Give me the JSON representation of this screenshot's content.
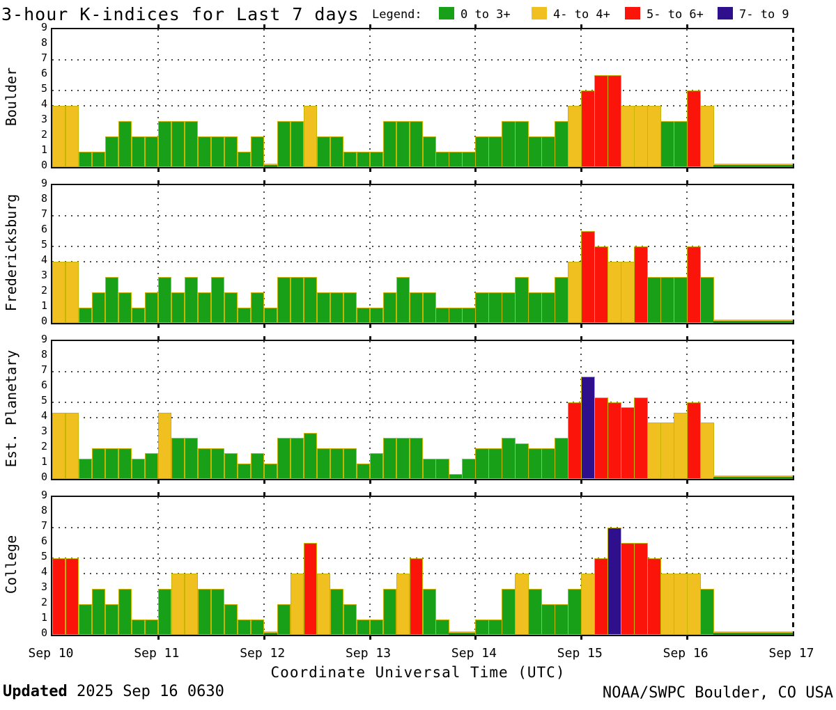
{
  "header": {
    "title": "3-hour K-indices for Last 7 days",
    "legend_label": "Legend:"
  },
  "footer": {
    "updated_label": "Updated",
    "updated_value": " 2025 Sep 16 0630",
    "credit": "NOAA/SWPC Boulder, CO USA"
  },
  "chart_data": {
    "type": "bar",
    "title": "3-hour K-indices for Last 7 days",
    "xlabel": "Coordinate Universal Time (UTC)",
    "x_ticks": [
      "Sep 10",
      "Sep 11",
      "Sep 12",
      "Sep 13",
      "Sep 14",
      "Sep 15",
      "Sep 16",
      "Sep 17"
    ],
    "ylim": [
      0,
      9
    ],
    "y_ticks": [
      0,
      1,
      2,
      3,
      4,
      5,
      6,
      7,
      8,
      9
    ],
    "y_gridlines": [
      4,
      5,
      7
    ],
    "days": 7,
    "bars_per_day": 8,
    "legend_position": "top",
    "grid": "dotted day boundaries and K=4,5,7",
    "color_bands": [
      {
        "label": "0 to 3+",
        "color": "#18a018",
        "min": 0,
        "max": 3.5
      },
      {
        "label": "4- to 4+",
        "color": "#f0c020",
        "min": 3.5,
        "max": 4.5
      },
      {
        "label": "5- to 6+",
        "color": "#fa140a",
        "min": 4.5,
        "max": 6.5
      },
      {
        "label": "7- to 9",
        "color": "#2e108c",
        "min": 6.5,
        "max": 9
      }
    ],
    "panels": [
      {
        "station": "Boulder",
        "values": [
          4,
          4,
          1,
          1,
          2,
          3,
          2,
          2,
          3,
          3,
          3,
          2,
          2,
          2,
          1,
          2,
          0,
          3,
          3,
          4,
          2,
          2,
          1,
          1,
          1,
          3,
          3,
          3,
          2,
          1,
          1,
          1,
          2,
          2,
          3,
          3,
          2,
          2,
          3,
          4,
          5,
          6,
          6,
          4,
          4,
          4,
          3,
          3,
          5,
          4,
          0,
          0,
          0,
          0,
          0,
          0
        ]
      },
      {
        "station": "Fredericksburg",
        "values": [
          4,
          4,
          1,
          2,
          3,
          2,
          1,
          2,
          3,
          2,
          3,
          2,
          3,
          2,
          1,
          2,
          1,
          3,
          3,
          3,
          2,
          2,
          2,
          1,
          1,
          2,
          3,
          2,
          2,
          1,
          1,
          1,
          2,
          2,
          2,
          3,
          2,
          2,
          3,
          4,
          6,
          5,
          4,
          4,
          5,
          3,
          3,
          3,
          5,
          3,
          0,
          0,
          0,
          0,
          0,
          0
        ]
      },
      {
        "station": "Est. Planetary",
        "values": [
          4.33,
          4.33,
          1.33,
          2,
          2,
          2,
          1.33,
          1.67,
          4.33,
          2.67,
          2.67,
          2,
          2,
          1.67,
          1,
          1.67,
          1,
          2.67,
          2.67,
          3,
          2,
          2,
          2,
          1,
          1.67,
          2.67,
          2.67,
          2.67,
          1.33,
          1.33,
          0.33,
          1.33,
          2,
          2,
          2.67,
          2.33,
          2,
          2,
          2.67,
          5,
          6.67,
          5.33,
          5,
          4.67,
          5.33,
          3.67,
          3.67,
          4.33,
          5,
          3.67,
          0,
          0,
          0,
          0,
          0,
          0
        ]
      },
      {
        "station": "College",
        "values": [
          5,
          5,
          2,
          3,
          2,
          3,
          1,
          1,
          3,
          4,
          4,
          3,
          3,
          2,
          1,
          1,
          0,
          2,
          4,
          6,
          4,
          3,
          2,
          1,
          1,
          3,
          4,
          5,
          3,
          1,
          0,
          0,
          1,
          1,
          3,
          4,
          3,
          2,
          2,
          3,
          4,
          5,
          7,
          6,
          6,
          5,
          4,
          4,
          4,
          3,
          0,
          0,
          0,
          0,
          0,
          0
        ]
      }
    ]
  }
}
